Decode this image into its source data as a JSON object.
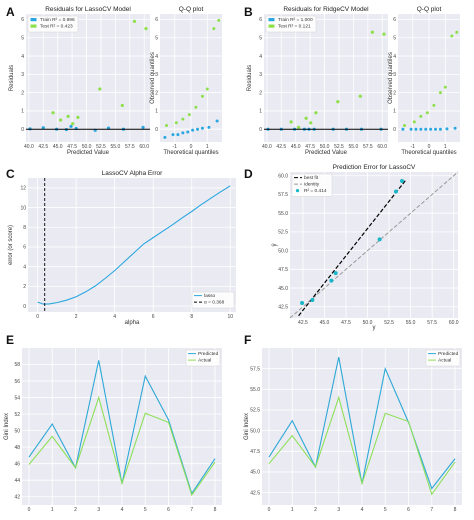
{
  "panels": [
    {
      "letter": "A"
    },
    {
      "letter": "B"
    },
    {
      "letter": "C"
    },
    {
      "letter": "D"
    },
    {
      "letter": "E"
    },
    {
      "letter": "F"
    }
  ],
  "colors": {
    "train": "#2aa7e0",
    "test": "#8de04a",
    "teal": "#17b7c8",
    "best_fit": "#000000",
    "identity": "#999999",
    "e_predicted": "#2ea8d6",
    "e_actual": "#8ee05a"
  },
  "chart_data": [
    {
      "id": "A-residuals",
      "type": "scatter",
      "title": "Residuals for LassoCV Model",
      "xlabel": "Predicted Value",
      "ylabel": "Residuals",
      "xlim": [
        39.5,
        61
      ],
      "ylim": [
        -0.7,
        6.3
      ],
      "xticks": [
        "40.0",
        "42.5",
        "45.0",
        "47.5",
        "50.0",
        "52.5",
        "55.0",
        "57.5",
        "60.0"
      ],
      "yticks": [
        "0",
        "1",
        "2",
        "3",
        "4",
        "5",
        "6"
      ],
      "legend": [
        "Train R² = 0.996",
        "Test R² = 0.423"
      ],
      "series": [
        {
          "name": "Train R² = 0.996",
          "x": [
            40.2,
            42.5,
            44.8,
            46.5,
            47.3,
            48.2,
            51.5,
            53.8,
            56.4,
            59.8
          ],
          "y": [
            0.02,
            0.08,
            0.0,
            -0.02,
            0.15,
            0.04,
            -0.06,
            0.06,
            0.0,
            0.1
          ]
        },
        {
          "name": "Test R² = 0.423",
          "x": [
            44.2,
            45.5,
            46.8,
            47.6,
            48.5,
            52.3,
            56.2,
            58.3,
            60.3
          ],
          "y": [
            0.9,
            0.5,
            0.7,
            0.3,
            0.65,
            2.2,
            1.3,
            5.9,
            5.5
          ]
        }
      ]
    },
    {
      "id": "A-qq",
      "type": "scatter",
      "title": "Q-Q plot",
      "xlabel": "Theoretical quantiles",
      "ylabel": "Observed quantiles",
      "xlim": [
        -1.9,
        1.9
      ],
      "ylim": [
        -0.7,
        6.3
      ],
      "xticks": [
        "-1",
        "0",
        "1"
      ],
      "yticks": [
        "0",
        "1",
        "2",
        "3",
        "4",
        "5",
        "6"
      ],
      "series": [
        {
          "name": "train",
          "x": [
            -1.6,
            -1.1,
            -0.8,
            -0.5,
            -0.2,
            0.1,
            0.4,
            0.7,
            1.1,
            1.6
          ],
          "y": [
            -0.45,
            -0.3,
            -0.3,
            -0.2,
            -0.15,
            -0.05,
            0.0,
            0.05,
            0.1,
            0.45
          ]
        },
        {
          "name": "test",
          "x": [
            -1.5,
            -0.9,
            -0.5,
            -0.1,
            0.3,
            0.7,
            1.0,
            1.4,
            1.7
          ],
          "y": [
            0.2,
            0.35,
            0.55,
            0.8,
            1.2,
            1.8,
            2.2,
            5.5,
            5.95
          ]
        }
      ]
    },
    {
      "id": "B-residuals",
      "type": "scatter",
      "title": "Residuals for RidgeCV Model",
      "xlabel": "Predicted Value",
      "ylabel": "Residuals",
      "xlim": [
        39.5,
        61
      ],
      "ylim": [
        -0.7,
        6.3
      ],
      "xticks": [
        "40.0",
        "42.5",
        "45.0",
        "47.5",
        "50.0",
        "52.5",
        "55.0",
        "57.5",
        "60.0"
      ],
      "yticks": [
        "0",
        "1",
        "2",
        "3",
        "4",
        "5",
        "6"
      ],
      "legend": [
        "Train R² = 1.000",
        "Test R² = 0.121"
      ],
      "series": [
        {
          "name": "Train R² = 1.000",
          "x": [
            40.2,
            42.5,
            44.8,
            46.5,
            47.3,
            48.2,
            51.5,
            53.8,
            56.4,
            59.8
          ],
          "y": [
            0.0,
            0.0,
            0.0,
            0.0,
            0.0,
            0.0,
            0.0,
            0.0,
            0.0,
            0.0
          ]
        },
        {
          "name": "Test R² = 0.121",
          "x": [
            44.2,
            45.5,
            46.8,
            47.6,
            48.5,
            52.3,
            56.2,
            58.3,
            60.3
          ],
          "y": [
            0.4,
            0.1,
            0.6,
            0.35,
            0.9,
            1.5,
            1.8,
            5.3,
            5.2
          ]
        }
      ]
    },
    {
      "id": "B-qq",
      "type": "scatter",
      "title": "Q-Q plot",
      "xlabel": "Theoretical quantiles",
      "ylabel": "Observed quantiles",
      "xlim": [
        -1.9,
        1.9
      ],
      "ylim": [
        -0.7,
        6.3
      ],
      "xticks": [
        "-1",
        "0",
        "1"
      ],
      "yticks": [
        "0",
        "1",
        "2",
        "3",
        "4",
        "5",
        "6"
      ],
      "series": [
        {
          "name": "train",
          "x": [
            -1.6,
            -1.1,
            -0.8,
            -0.5,
            -0.2,
            0.1,
            0.4,
            0.7,
            1.1,
            1.6
          ],
          "y": [
            0.0,
            0.0,
            0.0,
            0.0,
            0.0,
            0.0,
            0.0,
            0.0,
            0.02,
            0.05
          ]
        },
        {
          "name": "test",
          "x": [
            -1.5,
            -0.9,
            -0.5,
            -0.1,
            0.3,
            0.7,
            1.0,
            1.4,
            1.7
          ],
          "y": [
            0.2,
            0.4,
            0.7,
            0.9,
            1.3,
            2.0,
            2.3,
            5.1,
            5.3
          ]
        }
      ]
    },
    {
      "id": "C-alpha",
      "type": "line",
      "title": "LassoCV Alpha Error",
      "xlabel": "alpha",
      "ylabel": "error (or score)",
      "xlim": [
        -0.5,
        10.3
      ],
      "ylim": [
        -0.6,
        13
      ],
      "xticks": [
        "0",
        "2",
        "4",
        "6",
        "8",
        "10"
      ],
      "yticks": [
        "0",
        "2",
        "4",
        "6",
        "8",
        "10",
        "12"
      ],
      "legend": [
        "lasso",
        "α = 0.368"
      ],
      "alpha_line": 0.368,
      "series": [
        {
          "name": "lasso",
          "x": [
            0.0,
            0.3,
            0.6,
            1.0,
            1.5,
            2.0,
            2.5,
            3.0,
            3.5,
            4.0,
            4.5,
            5.0,
            5.5,
            6.0,
            6.5,
            7.0,
            7.5,
            8.0,
            8.5,
            9.0,
            9.5,
            10.0
          ],
          "y": [
            0.4,
            0.2,
            0.22,
            0.35,
            0.6,
            0.95,
            1.45,
            2.05,
            2.8,
            3.6,
            4.5,
            5.4,
            6.3,
            6.95,
            7.6,
            8.25,
            8.95,
            9.6,
            10.3,
            10.95,
            11.6,
            12.2
          ]
        }
      ]
    },
    {
      "id": "D-prediction-error",
      "type": "scatter",
      "title": "Prediction Error for LassoCV",
      "xlabel": "y",
      "ylabel": "ŷ",
      "xlim": [
        41,
        60.5
      ],
      "ylim": [
        41,
        60.5
      ],
      "xticks": [
        "42.5",
        "45.0",
        "47.5",
        "50.0",
        "52.5",
        "55.0",
        "57.5",
        "60.0"
      ],
      "yticks": [
        "42.5",
        "45.0",
        "47.5",
        "50.0",
        "52.5",
        "55.0",
        "57.5",
        "60.0"
      ],
      "legend": [
        "best fit",
        "identity",
        "R² = 0.414"
      ],
      "best_fit": [
        [
          42,
          41.3
        ],
        [
          54.5,
          59.5
        ]
      ],
      "identity": [
        [
          41,
          41
        ],
        [
          60.5,
          60.5
        ]
      ],
      "series": [
        {
          "name": "points",
          "x": [
            42.4,
            43.6,
            45.8,
            46.3,
            51.4,
            53.3,
            54.0
          ],
          "y": [
            43.0,
            43.4,
            46.0,
            47.0,
            51.5,
            57.9,
            59.3
          ]
        }
      ]
    },
    {
      "id": "E-lines",
      "type": "line",
      "title": "",
      "xlabel": "",
      "ylabel": "Gini Index",
      "xlim": [
        -0.3,
        8.3
      ],
      "ylim": [
        41,
        60
      ],
      "xticks": [
        "0",
        "1",
        "2",
        "3",
        "4",
        "5",
        "6",
        "7",
        "8"
      ],
      "yticks": [
        "42",
        "44",
        "46",
        "48",
        "50",
        "52",
        "54",
        "56",
        "58"
      ],
      "legend": [
        "Predicted",
        "Actual"
      ],
      "x": [
        0,
        1,
        2,
        3,
        4,
        5,
        6,
        7,
        8
      ],
      "series": [
        {
          "name": "Predicted",
          "values": [
            46.8,
            50.8,
            45.5,
            58.5,
            43.6,
            56.6,
            51.3,
            42.4,
            46.6
          ]
        },
        {
          "name": "Actual",
          "values": [
            45.9,
            49.3,
            45.5,
            54.0,
            43.6,
            52.1,
            51.0,
            42.2,
            46.2
          ]
        }
      ]
    },
    {
      "id": "F-lines",
      "type": "line",
      "title": "",
      "xlabel": "",
      "ylabel": "Gini Index",
      "xlim": [
        -0.3,
        8.3
      ],
      "ylim": [
        41,
        60
      ],
      "xticks": [
        "0",
        "1",
        "2",
        "3",
        "4",
        "5",
        "6",
        "7",
        "8"
      ],
      "yticks": [
        "42.5",
        "45.0",
        "47.5",
        "50.0",
        "52.5",
        "55.0",
        "57.5"
      ],
      "legend": [
        "Predicted",
        "Actual"
      ],
      "x": [
        0,
        1,
        2,
        3,
        4,
        5,
        6,
        7,
        8
      ],
      "series": [
        {
          "name": "Predicted",
          "values": [
            46.8,
            51.2,
            45.6,
            58.9,
            43.6,
            57.5,
            51.0,
            43.0,
            46.6
          ]
        },
        {
          "name": "Actual",
          "values": [
            46.0,
            49.4,
            45.6,
            54.0,
            43.6,
            52.1,
            51.1,
            42.3,
            46.2
          ]
        }
      ]
    }
  ]
}
